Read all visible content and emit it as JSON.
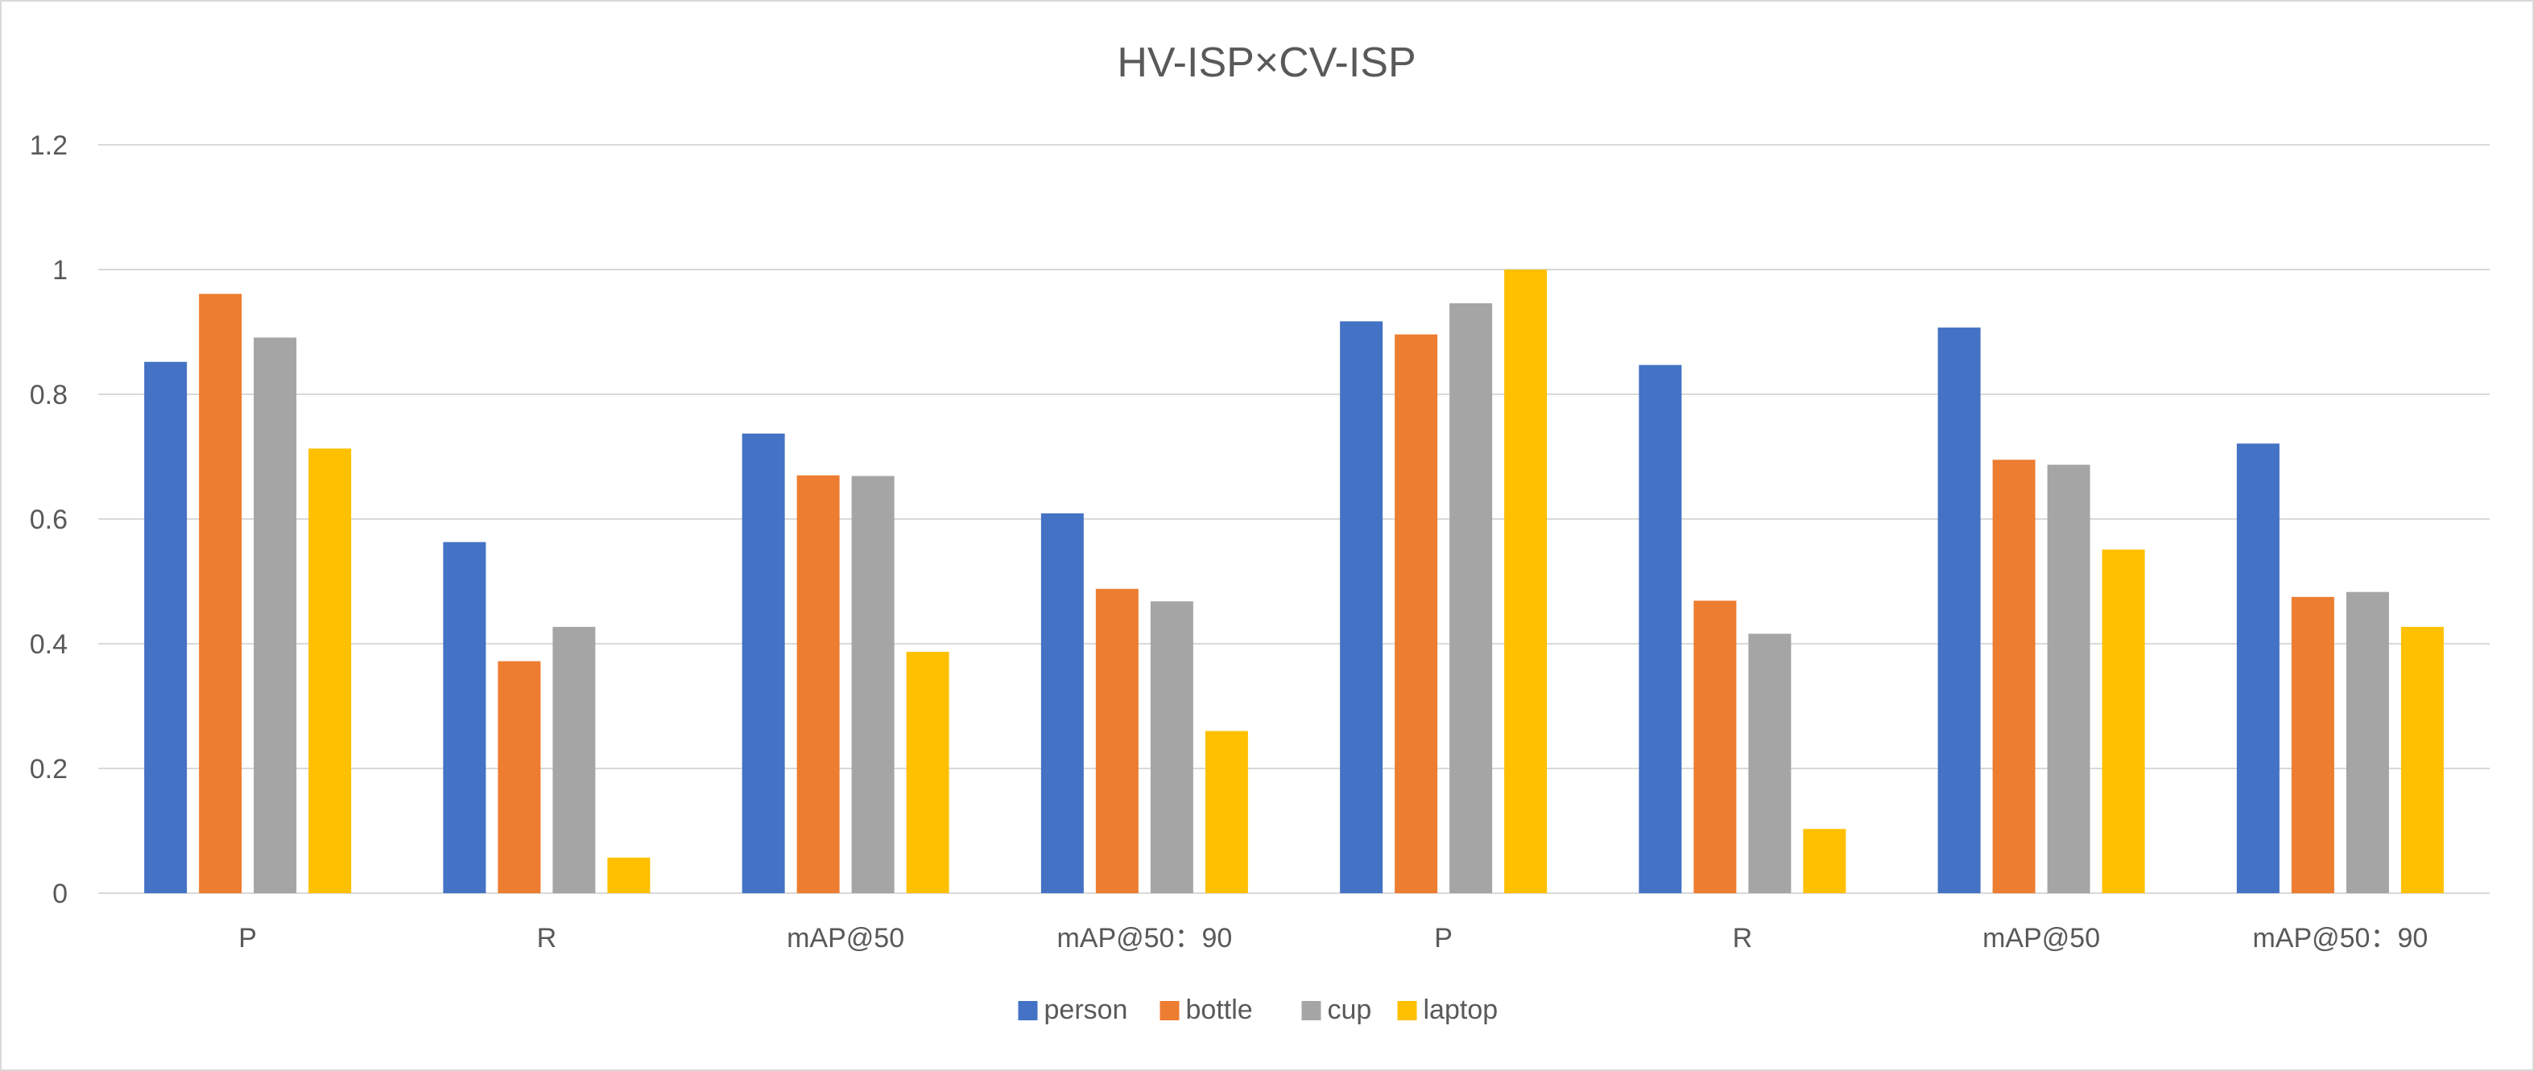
{
  "chart_data": {
    "type": "bar",
    "title": "HV-ISP×CV-ISP",
    "xlabel": "",
    "ylabel": "",
    "ylim": [
      0,
      1.2
    ],
    "yticks": [
      "0",
      "0.2",
      "0.4",
      "0.6",
      "0.8",
      "1",
      "1.2"
    ],
    "ytick_values": [
      0,
      0.2,
      0.4,
      0.6,
      0.8,
      1.0,
      1.2
    ],
    "grid": true,
    "legend_position": "bottom",
    "categories": [
      "P",
      "R",
      "mAP@50",
      "mAP@50：90",
      "P",
      "R",
      "mAP@50",
      "mAP@50：90"
    ],
    "series": [
      {
        "name": "person",
        "color": "#4472C4",
        "values": [
          0.852,
          0.563,
          0.737,
          0.609,
          0.917,
          0.847,
          0.907,
          0.721
        ]
      },
      {
        "name": "bottle",
        "color": "#ED7D31",
        "values": [
          0.961,
          0.372,
          0.67,
          0.488,
          0.896,
          0.469,
          0.695,
          0.475
        ]
      },
      {
        "name": "cup",
        "color": "#A5A5A5",
        "values": [
          0.891,
          0.427,
          0.669,
          0.468,
          0.946,
          0.416,
          0.687,
          0.483
        ]
      },
      {
        "name": "laptop",
        "color": "#FFC000",
        "values": [
          0.713,
          0.057,
          0.387,
          0.26,
          1.0,
          0.103,
          0.551,
          0.427
        ]
      }
    ]
  }
}
